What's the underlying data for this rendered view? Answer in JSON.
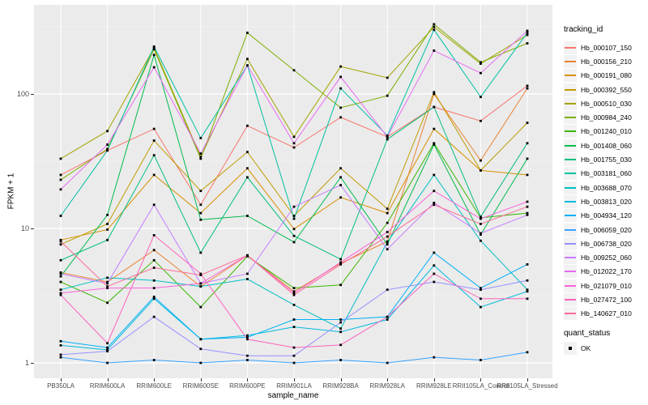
{
  "figure": {
    "x_axis_title": "sample_name",
    "y_axis_title": "FPKM + 1",
    "legend_tracking_title": "tracking_id",
    "legend_quant_title": "quant_status",
    "quant_ok_label": "OK",
    "panel_bg_color": "#EBEBEB",
    "grid_color": "#FFFFFF",
    "tick_text_color": "#4D4D4D",
    "point_color": "#000000"
  },
  "chart_data": {
    "type": "line",
    "title": "",
    "xlabel": "sample_name",
    "ylabel": "FPKM + 1",
    "y_scale": "log10",
    "ylim": [
      0.92,
      450
    ],
    "y_ticks": [
      "1",
      "10",
      "100"
    ],
    "y_minor_ticks": [
      3.162,
      31.62,
      316.2
    ],
    "grid": true,
    "legend_position": "right",
    "marker": "black-square",
    "quant_status": "OK",
    "categories": [
      "PB350LA",
      "RRIM600LA",
      "RRIM600LE",
      "RRIM600SE",
      "RRIM600PE",
      "RRIM901LA",
      "RRIM928BA",
      "RRIM928LA",
      "RRIM928LE",
      "RRII105LA_Control",
      "RRII105LA_Stressed"
    ],
    "series": [
      {
        "name": "Hb_000107_150",
        "color": "#F8766D",
        "values": [
          25,
          38,
          55,
          15,
          58,
          40,
          67,
          48,
          80,
          63,
          115
        ]
      },
      {
        "name": "Hb_000156_210",
        "color": "#EA8331",
        "values": [
          4.7,
          4.0,
          6.9,
          3.7,
          6.3,
          3.4,
          5.5,
          8.0,
          100,
          32,
          110
        ]
      },
      {
        "name": "Hb_000191_080",
        "color": "#D89000",
        "values": [
          8.2,
          9.8,
          25,
          13,
          28,
          9.9,
          17,
          13,
          55,
          27,
          25
        ]
      },
      {
        "name": "Hb_000392_550",
        "color": "#C09B00",
        "values": [
          7.6,
          10.8,
          45,
          19,
          37,
          12.4,
          28,
          14,
          103,
          27,
          61
        ]
      },
      {
        "name": "Hb_000510_030",
        "color": "#A3A500",
        "values": [
          33,
          53,
          220,
          34,
          182,
          48,
          160,
          132,
          315,
          168,
          275
        ]
      },
      {
        "name": "Hb_000984_240",
        "color": "#7CAE00",
        "values": [
          23,
          39,
          215,
          33,
          285,
          150,
          79,
          97,
          330,
          172,
          238
        ]
      },
      {
        "name": "Hb_001240_010",
        "color": "#39B600",
        "values": [
          4.0,
          2.8,
          5.8,
          2.6,
          6.2,
          3.6,
          3.8,
          11,
          43,
          12,
          13
        ]
      },
      {
        "name": "Hb_001408_060",
        "color": "#00BB4E",
        "values": [
          4.4,
          12.6,
          195,
          11.6,
          12.4,
          7.9,
          24,
          7.6,
          42,
          9.0,
          33
        ]
      },
      {
        "name": "Hb_001755_030",
        "color": "#00BF7D",
        "values": [
          5.8,
          8.2,
          35,
          6.6,
          24,
          8.8,
          5.9,
          46,
          80,
          12.2,
          43
        ]
      },
      {
        "name": "Hb_003181_060",
        "color": "#00C1A3",
        "values": [
          12.4,
          38,
          225,
          47,
          163,
          11.8,
          110,
          49,
          300,
          95,
          285
        ]
      },
      {
        "name": "Hb_003688_070",
        "color": "#00BFC4",
        "values": [
          3.5,
          4.3,
          4.1,
          3.7,
          4.2,
          2.7,
          1.8,
          7.9,
          25,
          8.1,
          3.5
        ]
      },
      {
        "name": "Hb_003813_020",
        "color": "#00BAE0",
        "values": [
          1.35,
          1.25,
          3.0,
          1.5,
          1.6,
          1.85,
          1.7,
          2.1,
          5.3,
          2.6,
          3.4
        ]
      },
      {
        "name": "Hb_004934_120",
        "color": "#00B0F6",
        "values": [
          1.45,
          1.3,
          3.1,
          1.5,
          1.55,
          2.1,
          2.1,
          2.2,
          6.6,
          3.6,
          5.4
        ]
      },
      {
        "name": "Hb_006059_020",
        "color": "#35A2FF",
        "values": [
          1.1,
          1.0,
          1.05,
          1.0,
          1.05,
          1.0,
          1.05,
          1.0,
          1.1,
          1.05,
          1.2
        ]
      },
      {
        "name": "Hb_006738_020",
        "color": "#9590FF",
        "values": [
          1.15,
          1.22,
          2.2,
          1.27,
          1.13,
          1.13,
          2.0,
          3.5,
          4.0,
          3.5,
          4.1
        ]
      },
      {
        "name": "Hb_009252_060",
        "color": "#C77CFF",
        "values": [
          4.6,
          3.9,
          15,
          3.9,
          4.6,
          14.5,
          21,
          7.0,
          15.5,
          9.2,
          12.6
        ]
      },
      {
        "name": "Hb_012022_170",
        "color": "#E76BF3",
        "values": [
          19.5,
          42,
          158,
          36,
          163,
          43,
          134,
          48,
          210,
          143,
          295
        ]
      },
      {
        "name": "Hb_021079_010",
        "color": "#FA62DB",
        "values": [
          3.3,
          3.6,
          3.6,
          3.9,
          6.3,
          3.3,
          5.6,
          9.4,
          19,
          11.8,
          15.8
        ]
      },
      {
        "name": "Hb_027472_100",
        "color": "#FF62BC",
        "values": [
          3.2,
          1.4,
          8.9,
          4.6,
          1.5,
          1.3,
          1.36,
          2.2,
          4.6,
          3.0,
          3.0
        ]
      },
      {
        "name": "Hb_140627_010",
        "color": "#FF6A98",
        "values": [
          8.0,
          3.7,
          5.1,
          4.5,
          6.3,
          3.2,
          5.4,
          8.7,
          15,
          10.8,
          14.5
        ]
      }
    ]
  }
}
